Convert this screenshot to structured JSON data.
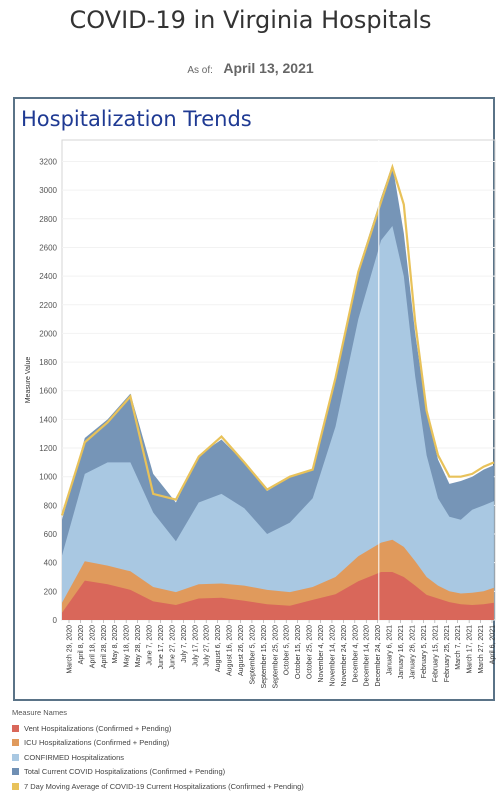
{
  "header": {
    "title": "COVID-19 in Virginia Hospitals",
    "asof_label": "As of:",
    "asof_date": "April 13, 2021"
  },
  "panel": {
    "title": "Hospitalization Trends"
  },
  "colors": {
    "vent": "#d9675a",
    "icu": "#e09a5c",
    "confirmed": "#a9c8e2",
    "total": "#6f8fb3",
    "avg": "#e8c25a",
    "border": "#5a7387"
  },
  "chart_data": {
    "type": "area",
    "ylabel": "Measure Value",
    "xlabel": "",
    "ylim": [
      0,
      3350
    ],
    "y_ticks": [
      "0",
      "200",
      "400",
      "600",
      "800",
      "1000",
      "1200",
      "1400",
      "1600",
      "1800",
      "2000",
      "2200",
      "2400",
      "2600",
      "2800",
      "3000",
      "3200"
    ],
    "x_tick_labels": [
      "March 29, 2020",
      "April 8, 2020",
      "April 18, 2020",
      "April 28, 2020",
      "May 8, 2020",
      "May 18, 2020",
      "May 28, 2020",
      "June 7, 2020",
      "June 17, 2020",
      "June 27, 2020",
      "July 7, 2020",
      "July 17, 2020",
      "July 27, 2020",
      "August 6, 2020",
      "August 16, 2020",
      "August 26, 2020",
      "September 5, 2020",
      "September 15, 2020",
      "September 25, 2020",
      "October 5, 2020",
      "October 15, 2020",
      "October 25, 2020",
      "November 4, 2020",
      "November 14, 2020",
      "November 24, 2020",
      "December 4, 2020",
      "December 14, 2020",
      "December 24, 2020",
      "January 6, 2021",
      "January 16, 2021",
      "January 26, 2021",
      "February 5, 2021",
      "February 15, 2021",
      "February 25, 2021",
      "March 7, 2021",
      "March 17, 2021",
      "March 27, 2021",
      "April 6, 2021"
    ],
    "x_dates": [
      "2020-03-29",
      "2020-04-18",
      "2020-05-08",
      "2020-05-28",
      "2020-06-17",
      "2020-07-07",
      "2020-07-27",
      "2020-08-16",
      "2020-09-05",
      "2020-09-25",
      "2020-10-15",
      "2020-11-04",
      "2020-11-24",
      "2020-12-14",
      "2021-01-03",
      "2021-01-13",
      "2021-01-23",
      "2021-02-02",
      "2021-02-12",
      "2021-02-22",
      "2021-03-04",
      "2021-03-14",
      "2021-03-24",
      "2021-04-03",
      "2021-04-12"
    ],
    "series": [
      {
        "name": "Vent Hospitalizations (Confirmed + Pending)",
        "values": [
          50,
          275,
          250,
          210,
          130,
          105,
          150,
          155,
          135,
          110,
          100,
          140,
          180,
          270,
          335,
          335,
          300,
          240,
          175,
          150,
          125,
          110,
          105,
          110,
          120
        ]
      },
      {
        "name": "ICU Hospitalizations (Confirmed + Pending)",
        "values": [
          120,
          410,
          380,
          340,
          230,
          195,
          250,
          255,
          240,
          210,
          195,
          230,
          300,
          445,
          540,
          560,
          510,
          410,
          300,
          240,
          200,
          185,
          190,
          200,
          225
        ]
      },
      {
        "name": "CONFIRMED Hospitalizations",
        "values": [
          450,
          1020,
          1100,
          1100,
          750,
          550,
          820,
          880,
          780,
          600,
          680,
          850,
          1350,
          2100,
          2650,
          2750,
          2400,
          1700,
          1150,
          850,
          720,
          700,
          770,
          800,
          830
        ]
      },
      {
        "name": "Total Current COVID Hospitalizations (Confirmed + Pending)",
        "values": [
          700,
          1270,
          1400,
          1580,
          1020,
          820,
          1150,
          1260,
          1100,
          900,
          1000,
          1050,
          1700,
          2450,
          2950,
          3180,
          2700,
          2000,
          1450,
          1120,
          950,
          970,
          1000,
          1050,
          1080
        ]
      },
      {
        "name": "7 Day Moving Average of COVID-19 Current Hospitalizations (Confirmed + Pending)",
        "values": [
          730,
          1240,
          1380,
          1560,
          880,
          840,
          1140,
          1280,
          1100,
          910,
          1000,
          1050,
          1690,
          2430,
          2920,
          3160,
          2900,
          2080,
          1460,
          1150,
          1000,
          1000,
          1020,
          1070,
          1100
        ]
      }
    ]
  },
  "legend": {
    "title": "Measure Names",
    "items": [
      {
        "label": "Vent Hospitalizations (Confirmed + Pending)",
        "color": "#d9675a"
      },
      {
        "label": "ICU Hospitalizations (Confirmed + Pending)",
        "color": "#e09a5c"
      },
      {
        "label": "CONFIRMED Hospitalizations",
        "color": "#a9c8e2"
      },
      {
        "label": "Total Current COVID Hospitalizations (Confirmed + Pending)",
        "color": "#6f8fb3"
      },
      {
        "label": "7 Day Moving Average of COVID-19 Current Hospitalizations (Confirmed + Pending)",
        "color": "#e8c25a"
      }
    ]
  }
}
